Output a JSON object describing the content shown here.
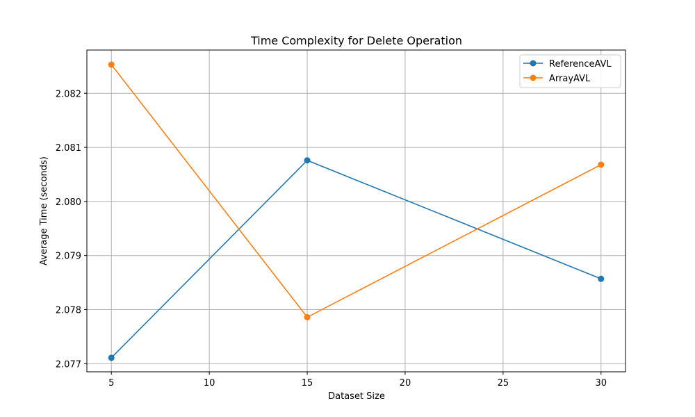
{
  "chart_data": {
    "type": "line",
    "title": "Time Complexity for Delete Operation",
    "xlabel": "Dataset Size",
    "ylabel": "Average Time (seconds)",
    "xlim": [
      3.75,
      31.25
    ],
    "ylim": [
      2.07685,
      2.0828
    ],
    "xticks": [
      5,
      10,
      15,
      20,
      25,
      30
    ],
    "yticks": [
      2.077,
      2.078,
      2.079,
      2.08,
      2.081,
      2.082
    ],
    "ytick_labels": [
      "2.077",
      "2.078",
      "2.079",
      "2.080",
      "2.081",
      "2.082"
    ],
    "grid": true,
    "legend_position": "top-right",
    "series": [
      {
        "name": "ReferenceAVL",
        "color": "#1f77b4",
        "x": [
          5,
          15,
          30
        ],
        "y": [
          2.07711,
          2.08076,
          2.07857
        ]
      },
      {
        "name": "ArrayAVL",
        "color": "#ff7f0e",
        "x": [
          5,
          15,
          30
        ],
        "y": [
          2.08253,
          2.07786,
          2.08068
        ]
      }
    ]
  }
}
